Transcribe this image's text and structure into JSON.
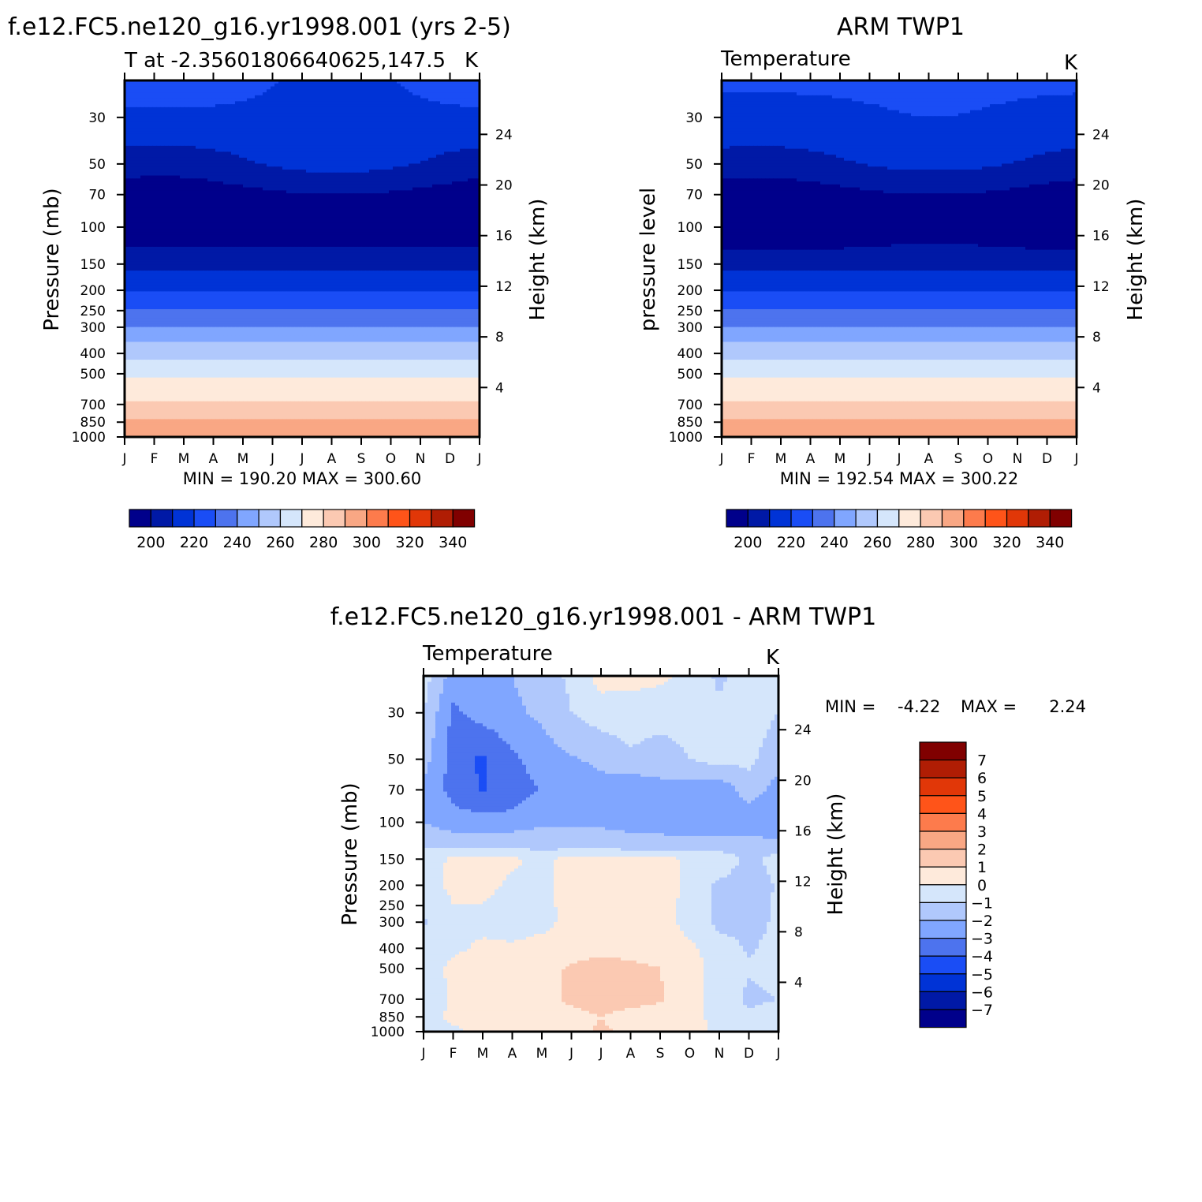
{
  "chart_data": [
    {
      "type": "heatmap",
      "title": "f.e12.FC5.ne120_g16.yr1998.001 (yrs 2-5)",
      "subtitle_left": "T at -2.35601806640625,147.5",
      "subtitle_right": "K",
      "ylabel": "Pressure (mb)",
      "ylabel_right": "Height (km)",
      "x_ticks": [
        "J",
        "F",
        "M",
        "A",
        "M",
        "J",
        "J",
        "A",
        "S",
        "O",
        "N",
        "D",
        "J"
      ],
      "y_ticks": [
        "30",
        "50",
        "70",
        "100",
        "150",
        "200",
        "250",
        "300",
        "400",
        "500",
        "700",
        "850",
        "1000"
      ],
      "y_ticks_right": [
        "24",
        "20",
        "16",
        "12",
        "8",
        "4"
      ],
      "stats": "MIN = 190.20 MAX = 300.60",
      "colorbar_labels": [
        "200",
        "220",
        "240",
        "260",
        "280",
        "300",
        "320",
        "340"
      ],
      "contour_levels": [
        190,
        200,
        210,
        220,
        230,
        240,
        250,
        260,
        270,
        280,
        290,
        300,
        310,
        320,
        330,
        340,
        350
      ],
      "min": 190.2,
      "max": 300.6
    },
    {
      "type": "heatmap",
      "title": "ARM TWP1",
      "subtitle_left": "Temperature",
      "subtitle_right": "K",
      "ylabel": "pressure level",
      "ylabel_right": "Height (km)",
      "x_ticks": [
        "J",
        "F",
        "M",
        "A",
        "M",
        "J",
        "J",
        "A",
        "S",
        "O",
        "N",
        "D",
        "J"
      ],
      "y_ticks": [
        "30",
        "50",
        "70",
        "100",
        "150",
        "200",
        "250",
        "300",
        "400",
        "500",
        "700",
        "850",
        "1000"
      ],
      "y_ticks_right": [
        "24",
        "20",
        "16",
        "12",
        "8",
        "4"
      ],
      "stats": "MIN = 192.54 MAX = 300.22",
      "colorbar_labels": [
        "200",
        "220",
        "240",
        "260",
        "280",
        "300",
        "320",
        "340"
      ],
      "contour_levels": [
        190,
        200,
        210,
        220,
        230,
        240,
        250,
        260,
        270,
        280,
        290,
        300,
        310,
        320,
        330,
        340,
        350
      ],
      "min": 192.54,
      "max": 300.22
    },
    {
      "type": "heatmap",
      "title": "f.e12.FC5.ne120_g16.yr1998.001 - ARM TWP1",
      "subtitle_left": "Temperature",
      "subtitle_right": "K",
      "ylabel": "Pressure (mb)",
      "ylabel_right": "Height (km)",
      "x_ticks": [
        "J",
        "F",
        "M",
        "A",
        "M",
        "J",
        "J",
        "A",
        "S",
        "O",
        "N",
        "D",
        "J"
      ],
      "y_ticks": [
        "30",
        "50",
        "70",
        "100",
        "150",
        "200",
        "250",
        "300",
        "400",
        "500",
        "700",
        "850",
        "1000"
      ],
      "y_ticks_right": [
        "24",
        "20",
        "16",
        "12",
        "8",
        "4"
      ],
      "stats_min_label": "MIN =",
      "stats_min": "-4.22",
      "stats_max_label": "MAX =",
      "stats_max": "2.24",
      "colorbar_labels": [
        "7",
        "6",
        "5",
        "4",
        "3",
        "2",
        "1",
        "0",
        "-1",
        "-2",
        "-3",
        "-4",
        "-5",
        "-6",
        "-7"
      ],
      "min": -4.22,
      "max": 2.24
    }
  ],
  "colors": {
    "temp_palette": [
      "#00008b",
      "#0019a6",
      "#0033d6",
      "#1a4df5",
      "#4d73ee",
      "#80a6ff",
      "#b0c8fc",
      "#d5e6fb",
      "#feeadb",
      "#fbc9b2",
      "#f9a784",
      "#fd7b4c",
      "#ff5419",
      "#e13708",
      "#b01d04",
      "#800000"
    ],
    "diff_palette": [
      "#800000",
      "#b01d04",
      "#e13708",
      "#ff5419",
      "#fd7b4c",
      "#f9a784",
      "#fbc9b2",
      "#feeadb",
      "#d5e6fb",
      "#b0c8fc",
      "#80a6ff",
      "#4d73ee",
      "#1a4df5",
      "#0033d6",
      "#0019a6",
      "#00008b"
    ]
  }
}
